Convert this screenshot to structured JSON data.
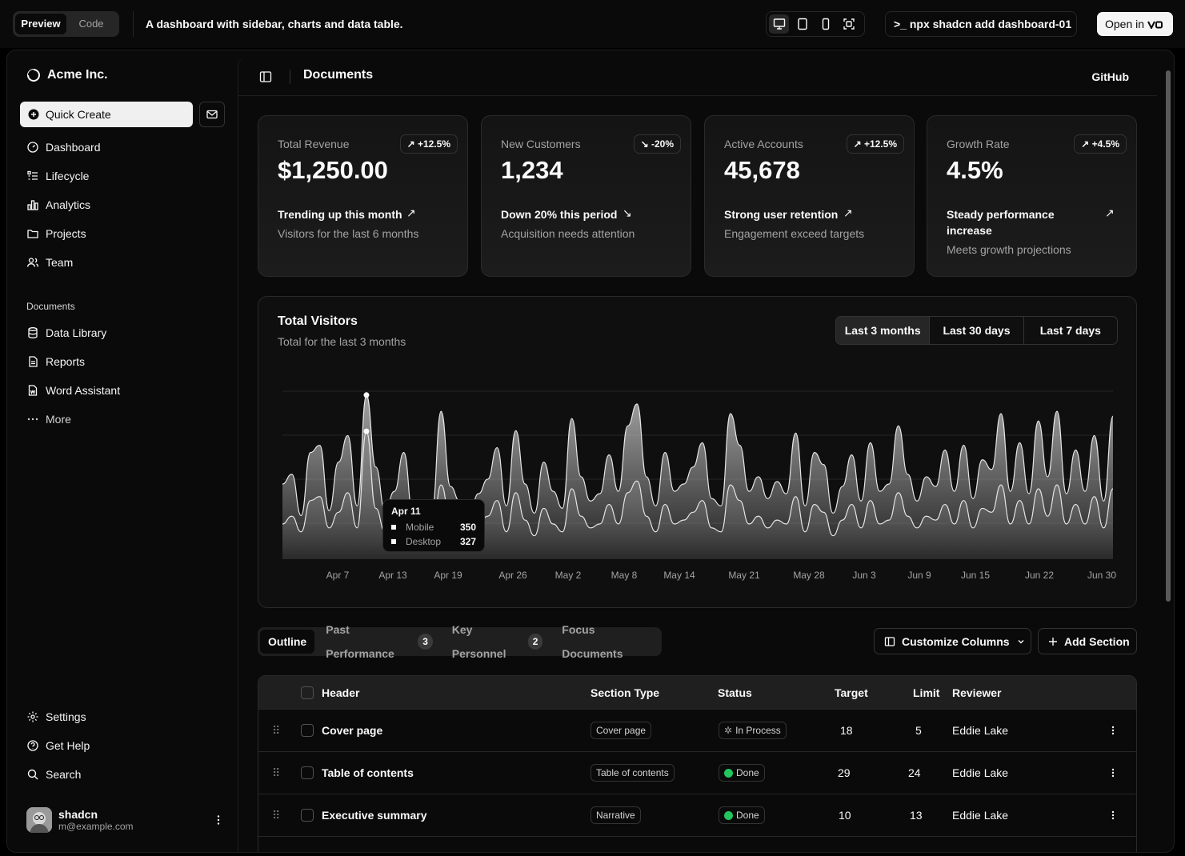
{
  "topbar": {
    "tab_preview": "Preview",
    "tab_code": "Code",
    "description": "A dashboard with sidebar, charts and data table.",
    "command": "npx shadcn add dashboard-01",
    "open_in": "Open in"
  },
  "sidebar": {
    "brand": "Acme Inc.",
    "quick_create": "Quick Create",
    "nav": [
      {
        "label": "Dashboard",
        "icon": "dashboard-icon"
      },
      {
        "label": "Lifecycle",
        "icon": "list-icon"
      },
      {
        "label": "Analytics",
        "icon": "chart-bar-icon"
      },
      {
        "label": "Projects",
        "icon": "folder-icon"
      },
      {
        "label": "Team",
        "icon": "users-icon"
      }
    ],
    "documents_heading": "Documents",
    "documents": [
      {
        "label": "Data Library",
        "icon": "database-icon"
      },
      {
        "label": "Reports",
        "icon": "report-icon"
      },
      {
        "label": "Word Assistant",
        "icon": "file-word-icon"
      },
      {
        "label": "More",
        "icon": "dots-icon"
      }
    ],
    "secondary": [
      {
        "label": "Settings",
        "icon": "settings-icon"
      },
      {
        "label": "Get Help",
        "icon": "help-icon"
      },
      {
        "label": "Search",
        "icon": "search-icon"
      }
    ],
    "user": {
      "name": "shadcn",
      "email": "m@example.com"
    }
  },
  "header": {
    "title": "Documents",
    "github": "GitHub"
  },
  "cards": [
    {
      "label": "Total Revenue",
      "value": "$1,250.00",
      "badge": "+12.5%",
      "trend": "up",
      "line1": "Trending up this month",
      "line2": "Visitors for the last 6 months"
    },
    {
      "label": "New Customers",
      "value": "1,234",
      "badge": "-20%",
      "trend": "down",
      "line1": "Down 20% this period",
      "line2": "Acquisition needs attention"
    },
    {
      "label": "Active Accounts",
      "value": "45,678",
      "badge": "+12.5%",
      "trend": "up",
      "line1": "Strong user retention",
      "line2": "Engagement exceed targets"
    },
    {
      "label": "Growth Rate",
      "value": "4.5%",
      "badge": "+4.5%",
      "trend": "up",
      "line1": "Steady performance increase",
      "line2": "Meets growth projections"
    }
  ],
  "visitors": {
    "title": "Total Visitors",
    "subtitle": "Total for the last 3 months",
    "ranges": [
      "Last 3 months",
      "Last 30 days",
      "Last 7 days"
    ],
    "selected_range": "Last 3 months",
    "tooltip": {
      "date": "Apr 11",
      "rows": [
        {
          "name": "Mobile",
          "value": "350"
        },
        {
          "name": "Desktop",
          "value": "327"
        }
      ]
    }
  },
  "chart_data": {
    "type": "area",
    "x_ticks": [
      "Apr 7",
      "Apr 13",
      "Apr 19",
      "Apr 26",
      "May 2",
      "May 8",
      "May 14",
      "May 21",
      "May 28",
      "Jun 3",
      "Jun 9",
      "Jun 15",
      "Jun 22",
      "Jun 30"
    ],
    "series": [
      {
        "name": "Mobile",
        "color": "#d4d4d4",
        "values": [
          220,
          240,
          110,
          290,
          310,
          120,
          280,
          340,
          140,
          350,
          250,
          130,
          190,
          300,
          120,
          140,
          130,
          420,
          200,
          160,
          120,
          180,
          220,
          310,
          150,
          360,
          210,
          130,
          270,
          190,
          140,
          400,
          230,
          160,
          180,
          290,
          190,
          380,
          440,
          230,
          150,
          300,
          190,
          210,
          260,
          330,
          170,
          150,
          410,
          320,
          190,
          230,
          170,
          220,
          180,
          360,
          150,
          300,
          270,
          130,
          200,
          290,
          160,
          330,
          190,
          210,
          380,
          240,
          160,
          230,
          200,
          310,
          190,
          320,
          170,
          280,
          250,
          410,
          190,
          330,
          180,
          390,
          230,
          420,
          180,
          310,
          190,
          350,
          160,
          410
        ]
      },
      {
        "name": "Desktop",
        "color": "#8a8a8a",
        "values": [
          90,
          110,
          70,
          150,
          160,
          80,
          120,
          170,
          80,
          327,
          130,
          70,
          90,
          140,
          60,
          80,
          60,
          190,
          100,
          80,
          60,
          90,
          110,
          150,
          70,
          170,
          100,
          60,
          130,
          90,
          70,
          180,
          110,
          80,
          90,
          140,
          90,
          170,
          200,
          110,
          70,
          140,
          90,
          100,
          120,
          150,
          80,
          70,
          190,
          150,
          90,
          110,
          80,
          100,
          90,
          160,
          70,
          140,
          120,
          60,
          100,
          140,
          80,
          150,
          90,
          100,
          170,
          110,
          80,
          110,
          100,
          140,
          90,
          150,
          80,
          130,
          120,
          190,
          90,
          150,
          90,
          180,
          110,
          190,
          90,
          140,
          90,
          160,
          80,
          180
        ]
      }
    ]
  },
  "table_controls": {
    "tabs": [
      {
        "label": "Outline",
        "count": ""
      },
      {
        "label": "Past Performance",
        "count": "3"
      },
      {
        "label": "Key Personnel",
        "count": "2"
      },
      {
        "label": "Focus Documents",
        "count": ""
      }
    ],
    "customize": "Customize Columns",
    "add_section": "Add Section"
  },
  "table": {
    "columns": [
      "Header",
      "Section Type",
      "Status",
      "Target",
      "Limit",
      "Reviewer"
    ],
    "rows": [
      {
        "header": "Cover page",
        "type": "Cover page",
        "status": "In Process",
        "target": "18",
        "limit": "5",
        "reviewer": "Eddie Lake"
      },
      {
        "header": "Table of contents",
        "type": "Table of contents",
        "status": "Done",
        "target": "29",
        "limit": "24",
        "reviewer": "Eddie Lake"
      },
      {
        "header": "Executive summary",
        "type": "Narrative",
        "status": "Done",
        "target": "10",
        "limit": "13",
        "reviewer": "Eddie Lake"
      }
    ]
  }
}
